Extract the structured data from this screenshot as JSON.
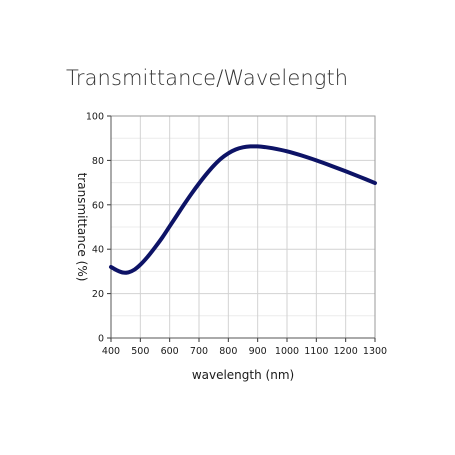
{
  "chart_data": {
    "type": "line",
    "title": "Transmittance/Wavelength",
    "xlabel": "wavelength (nm)",
    "ylabel": "transmittance (%)",
    "xlim": [
      400,
      1300
    ],
    "ylim": [
      0,
      100
    ],
    "x_ticks": [
      400,
      500,
      600,
      700,
      800,
      900,
      1000,
      1100,
      1200,
      1300
    ],
    "y_ticks": [
      0,
      20,
      40,
      60,
      80,
      100
    ],
    "grid": true,
    "series": [
      {
        "color": "#0d1366",
        "x": [
          400,
          420,
          440,
          460,
          480,
          500,
          525,
          550,
          575,
          600,
          625,
          650,
          675,
          700,
          725,
          750,
          775,
          800,
          825,
          850,
          875,
          900,
          925,
          950,
          1000,
          1050,
          1100,
          1150,
          1200,
          1250,
          1300
        ],
        "y": [
          32.0,
          30.5,
          29.5,
          29.6,
          30.8,
          33.0,
          36.6,
          40.8,
          45.3,
          50.3,
          55.3,
          60.3,
          65.1,
          69.6,
          73.8,
          77.6,
          80.8,
          83.2,
          84.9,
          85.9,
          86.3,
          86.3,
          86.0,
          85.5,
          84.1,
          82.2,
          80.0,
          77.6,
          75.1,
          72.5,
          69.8
        ]
      }
    ]
  }
}
